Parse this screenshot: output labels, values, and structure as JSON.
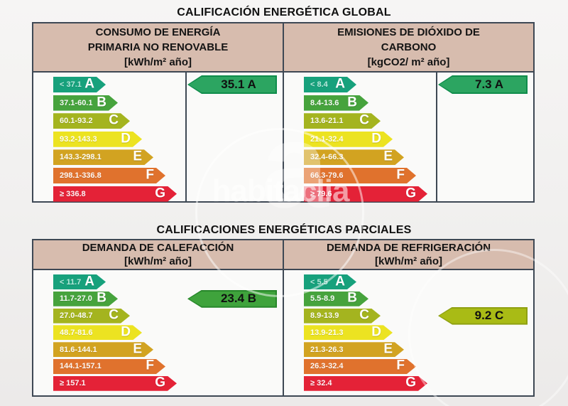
{
  "global_title": "CALIFICACIÓN ENERGÉTICA GLOBAL",
  "parcial_title": "CALIFICACIONES ENERGÉTICAS PARCIALES",
  "watermark": {
    "text": "habitaclia",
    "glyph": "a"
  },
  "palette": {
    "A": "#17a17c",
    "B": "#46a33d",
    "C": "#a4b41f",
    "D": "#ece321",
    "E": "#d2a321",
    "F": "#e0722d",
    "G": "#e42237",
    "header_bg": "#d7bcae",
    "border": "#3e4854"
  },
  "t1": {
    "header": [
      "CONSUMO DE ENERGÍA",
      "PRIMARIA NO RENOVABLE",
      "[kWh/m² año]"
    ],
    "scale": [
      {
        "letter": "A",
        "range": "< 37.1"
      },
      {
        "letter": "B",
        "range": "37.1-60.1"
      },
      {
        "letter": "C",
        "range": "60.1-93.2"
      },
      {
        "letter": "D",
        "range": "93.2-143.3"
      },
      {
        "letter": "E",
        "range": "143.3-298.1"
      },
      {
        "letter": "F",
        "range": "298.1-336.8"
      },
      {
        "letter": "G",
        "range": "≥ 336.8"
      }
    ],
    "rating": {
      "value": "35.1 A",
      "letter": "A",
      "row_index": "0",
      "fill": "#2ca561",
      "edge": "#0f8c4c"
    }
  },
  "t2": {
    "header": [
      "EMISIONES DE DIÓXIDO DE",
      "CARBONO",
      "[kgCO2/ m² año]"
    ],
    "scale": [
      {
        "letter": "A",
        "range": "< 8.4"
      },
      {
        "letter": "B",
        "range": "8.4-13.6"
      },
      {
        "letter": "C",
        "range": "13.6-21.1"
      },
      {
        "letter": "D",
        "range": "21.1-32.4"
      },
      {
        "letter": "E",
        "range": "32.4-66.3"
      },
      {
        "letter": "F",
        "range": "66.3-79.6"
      },
      {
        "letter": "G",
        "range": "≥ 79.6"
      }
    ],
    "rating": {
      "value": "7.3 A",
      "letter": "A",
      "row_index": "0",
      "fill": "#2ca561",
      "edge": "#0f8c4c"
    }
  },
  "t3": {
    "header": [
      "DEMANDA DE CALEFACCIÓN",
      "[kWh/m² año]"
    ],
    "scale": [
      {
        "letter": "A",
        "range": "< 11.7"
      },
      {
        "letter": "B",
        "range": "11.7-27.0"
      },
      {
        "letter": "C",
        "range": "27.0-48.7"
      },
      {
        "letter": "D",
        "range": "48.7-81.6"
      },
      {
        "letter": "E",
        "range": "81.6-144.1"
      },
      {
        "letter": "F",
        "range": "144.1-157.1"
      },
      {
        "letter": "G",
        "range": "≥ 157.1"
      }
    ],
    "rating": {
      "value": "23.4 B",
      "letter": "B",
      "row_index": "1",
      "fill": "#3fa33c",
      "edge": "#27872a"
    }
  },
  "t4": {
    "header": [
      "DEMANDA DE REFRIGERACIÓN",
      "[kWh/m² año]"
    ],
    "scale": [
      {
        "letter": "A",
        "range": "< 5.5"
      },
      {
        "letter": "B",
        "range": "5.5-8.9"
      },
      {
        "letter": "C",
        "range": "8.9-13.9"
      },
      {
        "letter": "D",
        "range": "13.9-21.3"
      },
      {
        "letter": "E",
        "range": "21.3-26.3"
      },
      {
        "letter": "F",
        "range": "26.3-32.4"
      },
      {
        "letter": "G",
        "range": "≥ 32.4"
      }
    ],
    "rating": {
      "value": "9.2 C",
      "letter": "C",
      "row_index": "2",
      "fill": "#a9bb15",
      "edge": "#8fa011"
    }
  },
  "chart_data": [
    {
      "type": "bar",
      "title": "CONSUMO DE ENERGÍA PRIMARIA NO RENOVABLE [kWh/m² año]",
      "categories": [
        "A",
        "B",
        "C",
        "D",
        "E",
        "F",
        "G"
      ],
      "band_ranges": [
        "< 37.1",
        "37.1-60.1",
        "60.1-93.2",
        "93.2-143.3",
        "143.3-298.1",
        "298.1-336.8",
        "≥ 336.8"
      ],
      "rating_value": 35.1,
      "rating_letter": "A"
    },
    {
      "type": "bar",
      "title": "EMISIONES DE DIÓXIDO DE CARBONO [kgCO2/ m² año]",
      "categories": [
        "A",
        "B",
        "C",
        "D",
        "E",
        "F",
        "G"
      ],
      "band_ranges": [
        "< 8.4",
        "8.4-13.6",
        "13.6-21.1",
        "21.1-32.4",
        "32.4-66.3",
        "66.3-79.6",
        "≥ 79.6"
      ],
      "rating_value": 7.3,
      "rating_letter": "A"
    },
    {
      "type": "bar",
      "title": "DEMANDA DE CALEFACCIÓN [kWh/m² año]",
      "categories": [
        "A",
        "B",
        "C",
        "D",
        "E",
        "F",
        "G"
      ],
      "band_ranges": [
        "< 11.7",
        "11.7-27.0",
        "27.0-48.7",
        "48.7-81.6",
        "81.6-144.1",
        "144.1-157.1",
        "≥ 157.1"
      ],
      "rating_value": 23.4,
      "rating_letter": "B"
    },
    {
      "type": "bar",
      "title": "DEMANDA DE REFRIGERACIÓN [kWh/m² año]",
      "categories": [
        "A",
        "B",
        "C",
        "D",
        "E",
        "F",
        "G"
      ],
      "band_ranges": [
        "< 5.5",
        "5.5-8.9",
        "8.9-13.9",
        "13.9-21.3",
        "21.3-26.3",
        "26.3-32.4",
        "≥ 32.4"
      ],
      "rating_value": 9.2,
      "rating_letter": "C"
    }
  ]
}
